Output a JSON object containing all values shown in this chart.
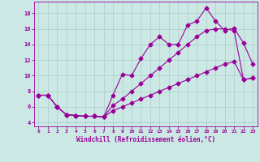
{
  "xlabel": "Windchill (Refroidissement éolien,°C)",
  "bg_color": "#cce8e4",
  "line_color": "#990099",
  "marker": "D",
  "markersize": 2.5,
  "linewidth": 0.8,
  "xlim": [
    -0.5,
    23.5
  ],
  "ylim": [
    3.5,
    19.5
  ],
  "xticks": [
    0,
    1,
    2,
    3,
    4,
    5,
    6,
    7,
    8,
    9,
    10,
    11,
    12,
    13,
    14,
    15,
    16,
    17,
    18,
    19,
    20,
    21,
    22,
    23
  ],
  "yticks": [
    4,
    6,
    8,
    10,
    12,
    14,
    16,
    18
  ],
  "grid_color": "#aacccc",
  "line1_x": [
    0,
    1,
    2,
    3,
    4,
    5,
    6,
    7,
    8,
    9,
    10,
    11,
    12,
    13,
    14,
    15,
    16,
    17,
    18,
    19,
    20,
    21,
    22,
    23
  ],
  "line1_y": [
    7.5,
    7.5,
    6.0,
    5.0,
    4.9,
    4.8,
    4.8,
    4.7,
    7.5,
    10.2,
    10.0,
    12.2,
    14.0,
    15.0,
    14.0,
    14.0,
    16.5,
    17.0,
    18.7,
    17.0,
    15.8,
    16.1,
    14.2,
    11.5
  ],
  "line2_x": [
    0,
    1,
    2,
    3,
    4,
    5,
    6,
    7,
    8,
    9,
    10,
    11,
    12,
    13,
    14,
    15,
    16,
    17,
    18,
    19,
    20,
    21,
    22,
    23
  ],
  "line2_y": [
    7.5,
    7.5,
    6.0,
    5.0,
    4.9,
    4.8,
    4.8,
    4.7,
    6.2,
    7.0,
    8.0,
    9.0,
    10.0,
    11.0,
    12.0,
    13.0,
    14.0,
    15.0,
    15.8,
    16.0,
    16.0,
    15.8,
    9.5,
    9.7
  ],
  "line3_x": [
    0,
    1,
    2,
    3,
    4,
    5,
    6,
    7,
    8,
    9,
    10,
    11,
    12,
    13,
    14,
    15,
    16,
    17,
    18,
    19,
    20,
    21,
    22,
    23
  ],
  "line3_y": [
    7.5,
    7.5,
    6.0,
    5.0,
    4.9,
    4.8,
    4.8,
    4.7,
    5.5,
    6.0,
    6.5,
    7.0,
    7.5,
    8.0,
    8.5,
    9.0,
    9.5,
    10.0,
    10.5,
    11.0,
    11.5,
    11.8,
    9.5,
    9.7
  ]
}
